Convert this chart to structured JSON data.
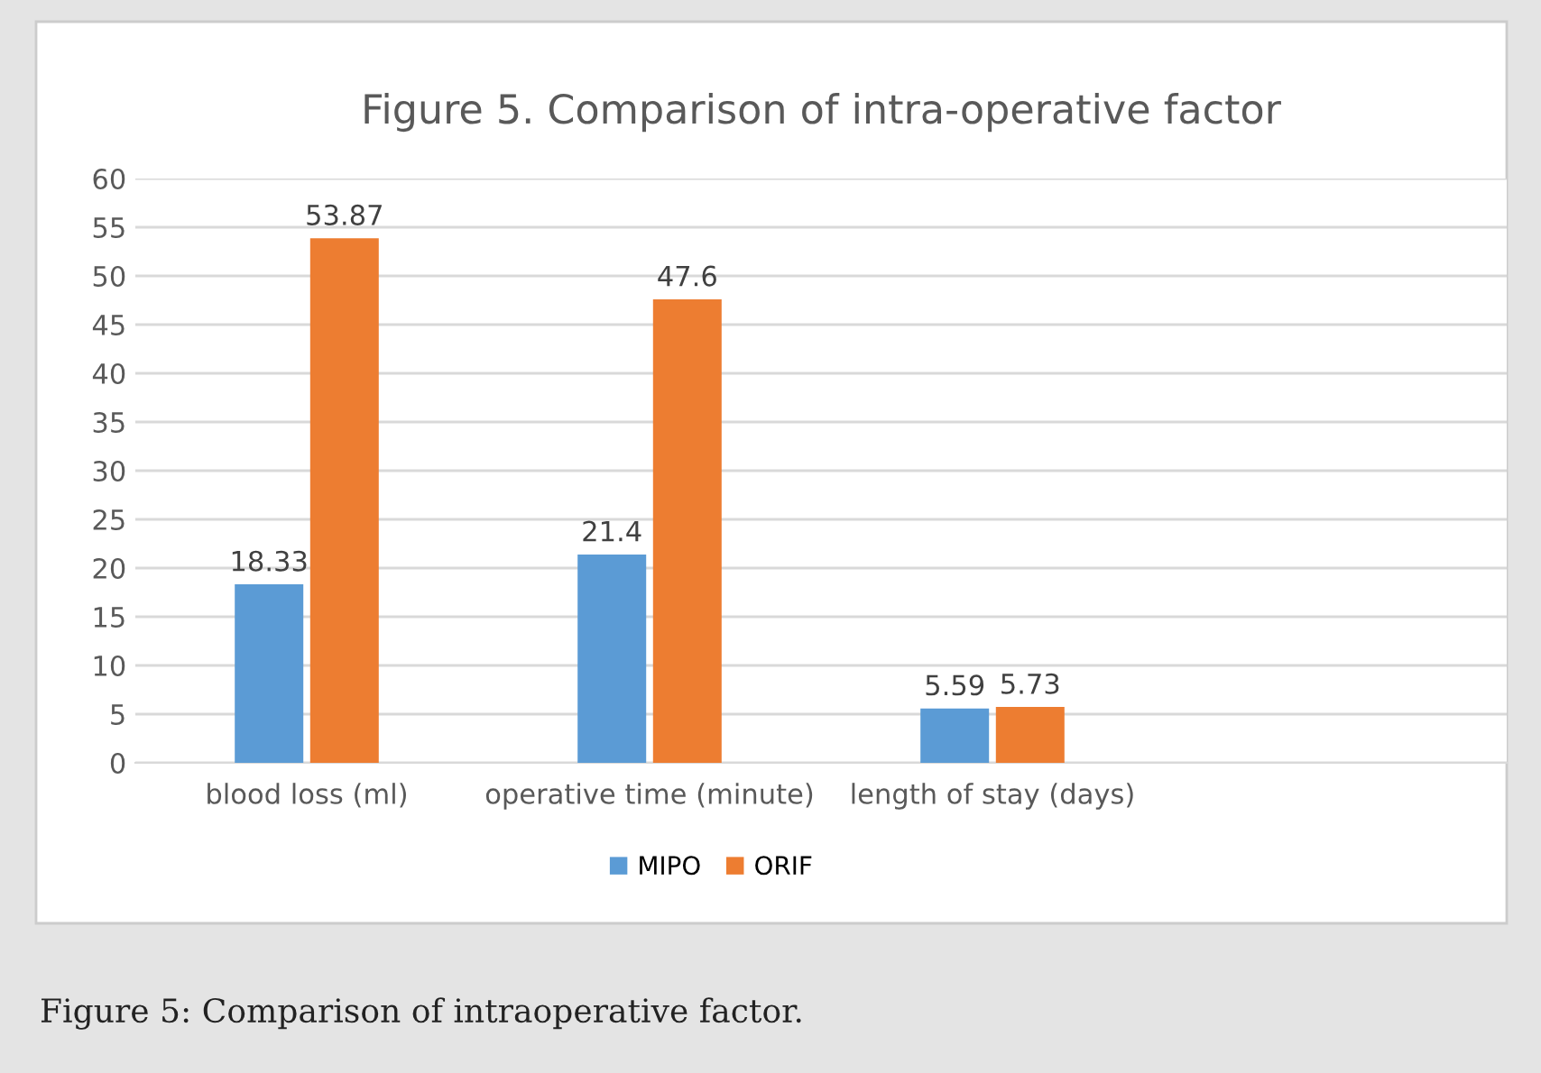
{
  "chart_data": {
    "type": "bar",
    "title": "Figure 5. Comparison of intra-operative factor",
    "categories": [
      "blood loss (ml)",
      "operative time (minute)",
      "length of stay (days)",
      null
    ],
    "series": [
      {
        "name": "MIPO",
        "color": "#5b9bd5",
        "values": [
          18.33,
          21.4,
          5.59,
          null
        ]
      },
      {
        "name": "ORIF",
        "color": "#ed7d31",
        "values": [
          53.87,
          47.6,
          5.73,
          null
        ]
      }
    ],
    "ylim": [
      0,
      60
    ],
    "yticks": [
      0,
      5,
      10,
      15,
      20,
      25,
      30,
      35,
      40,
      45,
      50,
      55,
      60
    ],
    "grid": "y",
    "legend": "bottom",
    "data_labels": true,
    "annotations": [
      "Figure 5: Comparison of intraoperative factor."
    ]
  }
}
